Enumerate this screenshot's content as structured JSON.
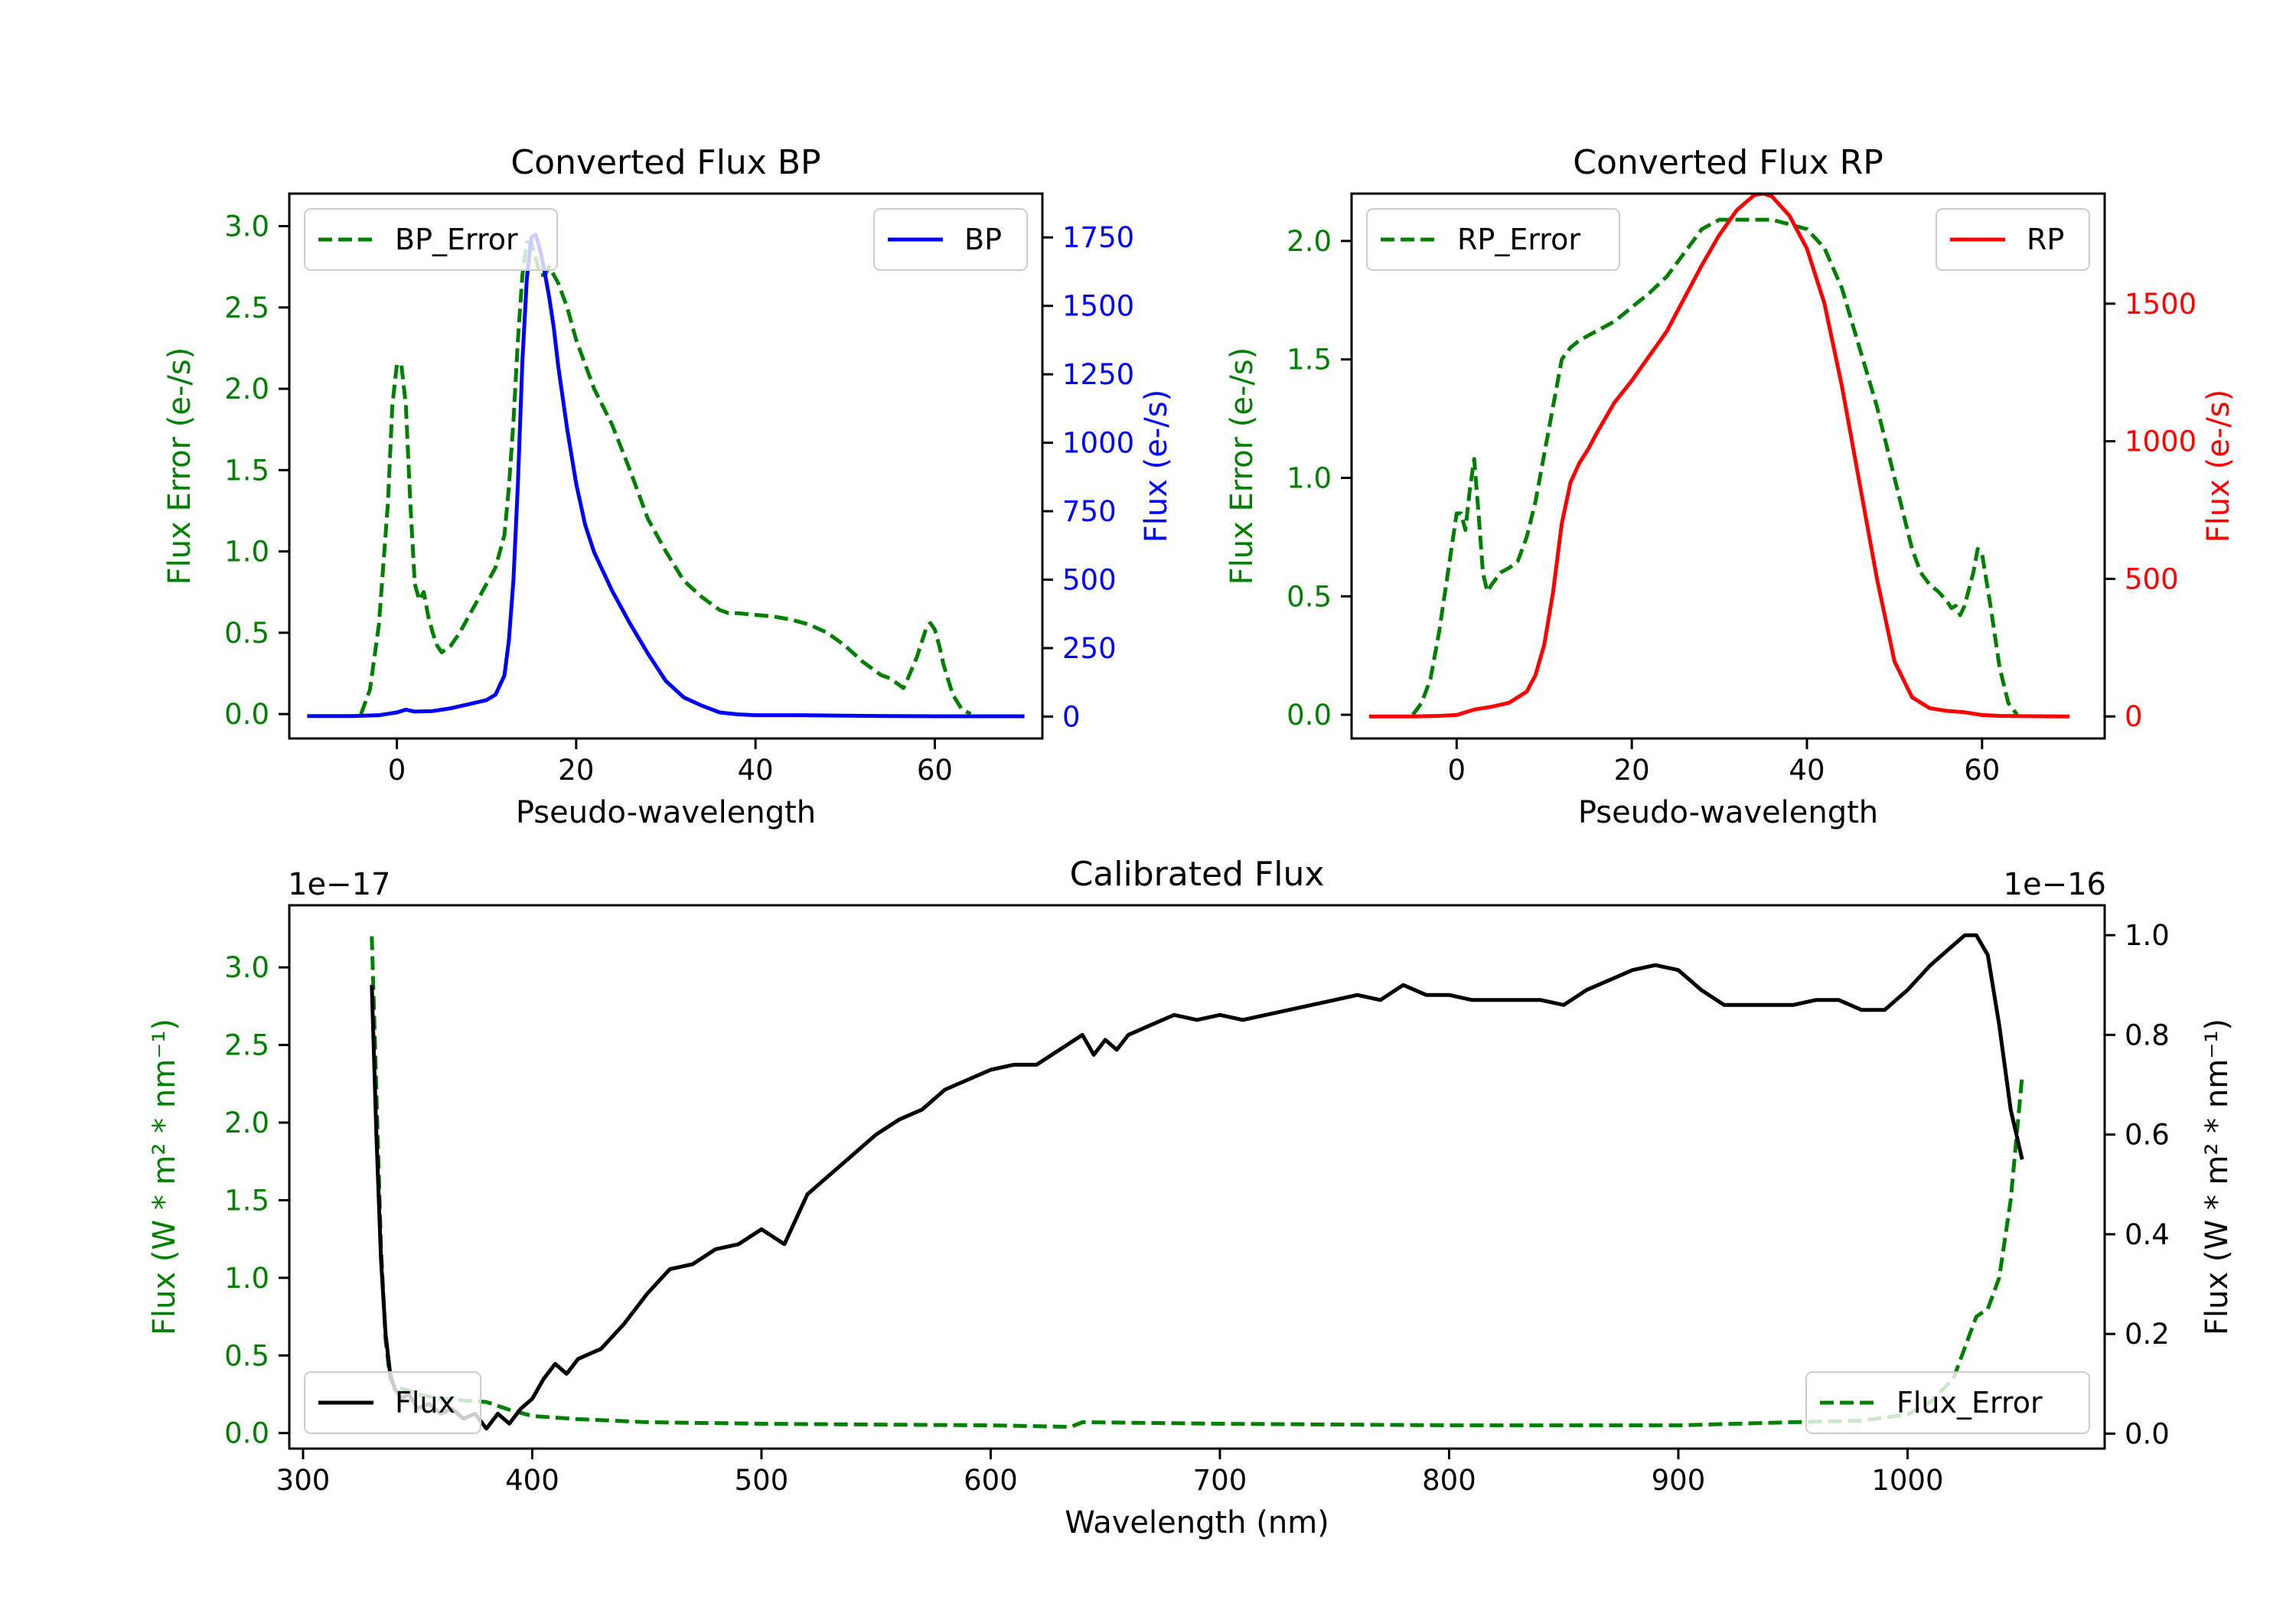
{
  "colors": {
    "bp": "#0000ff",
    "rp": "#ff0000",
    "error": "#008000",
    "flux": "#000000",
    "axis": "#000000",
    "background": "#ffffff"
  },
  "chart_data": [
    {
      "id": "bp",
      "type": "line",
      "title": "Converted Flux BP",
      "xlabel": "Pseudo-wavelength",
      "ylabel_left": "Flux Error (e-/s)",
      "ylabel_right": "Flux (e-/s)",
      "xlim": [
        -12,
        72
      ],
      "ylim_left": [
        -0.15,
        3.2
      ],
      "ylim_right": [
        -80,
        1910
      ],
      "xticks": [
        0,
        20,
        40,
        60
      ],
      "xtick_labels": [
        "0",
        "20",
        "40",
        "60"
      ],
      "yticks_left": [
        0.0,
        0.5,
        1.0,
        1.5,
        2.0,
        2.5,
        3.0
      ],
      "yticks_left_labels": [
        "0.0",
        "0.5",
        "1.0",
        "1.5",
        "2.0",
        "2.5",
        "3.0"
      ],
      "yticks_right": [
        0,
        250,
        500,
        750,
        1000,
        1250,
        1500,
        1750
      ],
      "yticks_right_labels": [
        "0",
        "250",
        "500",
        "750",
        "1000",
        "1250",
        "1500",
        "1750"
      ],
      "legend_left": "BP_Error",
      "legend_right": "BP",
      "series": [
        {
          "name": "BP_Error",
          "axis": "left",
          "style": "dashed",
          "color": "#008000",
          "x": [
            -4,
            -3,
            -2,
            -1,
            -0.5,
            0,
            0.5,
            1,
            1.5,
            2,
            2.5,
            3,
            3.5,
            4,
            4.5,
            5,
            6,
            7,
            8,
            9,
            10,
            11,
            12,
            12.5,
            13,
            13.5,
            14,
            14.5,
            15,
            15.5,
            16,
            16.5,
            17,
            18,
            19,
            20,
            22,
            24,
            26,
            28,
            30,
            32,
            34,
            36,
            37,
            38,
            40,
            42,
            44,
            46,
            48,
            50,
            52,
            54,
            55,
            56,
            56.5,
            57,
            58,
            59,
            59.5,
            60,
            60.5,
            61,
            62,
            63,
            64
          ],
          "values": [
            0.0,
            0.15,
            0.55,
            1.3,
            1.9,
            2.15,
            2.15,
            1.9,
            1.3,
            0.8,
            0.7,
            0.75,
            0.6,
            0.5,
            0.42,
            0.38,
            0.42,
            0.5,
            0.6,
            0.7,
            0.8,
            0.9,
            1.1,
            1.4,
            1.8,
            2.3,
            2.7,
            2.9,
            2.9,
            2.8,
            2.7,
            2.7,
            2.75,
            2.65,
            2.5,
            2.3,
            2.0,
            1.78,
            1.5,
            1.2,
            1.0,
            0.82,
            0.72,
            0.64,
            0.62,
            0.62,
            0.61,
            0.6,
            0.58,
            0.55,
            0.5,
            0.42,
            0.32,
            0.24,
            0.22,
            0.18,
            0.16,
            0.22,
            0.35,
            0.52,
            0.56,
            0.52,
            0.42,
            0.3,
            0.12,
            0.03,
            0.0
          ]
        },
        {
          "name": "BP",
          "axis": "right",
          "style": "solid",
          "color": "#0000ff",
          "x": [
            -10,
            -5,
            -2,
            0,
            1,
            2,
            4,
            6,
            8,
            10,
            11,
            12,
            12.5,
            13,
            13.5,
            14,
            14.5,
            15,
            15.5,
            16,
            16.5,
            17,
            17.5,
            18,
            19,
            20,
            21,
            22,
            24,
            26,
            28,
            30,
            32,
            34,
            36,
            38,
            40,
            45,
            50,
            55,
            60,
            65,
            70
          ],
          "values": [
            2,
            2,
            5,
            15,
            25,
            18,
            20,
            30,
            45,
            60,
            80,
            150,
            280,
            500,
            850,
            1300,
            1600,
            1750,
            1760,
            1700,
            1620,
            1530,
            1420,
            1280,
            1050,
            850,
            700,
            600,
            460,
            340,
            230,
            130,
            70,
            40,
            15,
            8,
            5,
            5,
            3,
            2,
            1,
            1,
            1
          ]
        }
      ]
    },
    {
      "id": "rp",
      "type": "line",
      "title": "Converted Flux RP",
      "xlabel": "Pseudo-wavelength",
      "ylabel_left": "Flux Error (e-/s)",
      "ylabel_right": "Flux (e-/s)",
      "xlim": [
        -12,
        74
      ],
      "ylim_left": [
        -0.1,
        2.2
      ],
      "ylim_right": [
        -80,
        1900
      ],
      "xticks": [
        0,
        20,
        40,
        60
      ],
      "xtick_labels": [
        "0",
        "20",
        "40",
        "60"
      ],
      "yticks_left": [
        0.0,
        0.5,
        1.0,
        1.5,
        2.0
      ],
      "yticks_left_labels": [
        "0.0",
        "0.5",
        "1.0",
        "1.5",
        "2.0"
      ],
      "yticks_right": [
        0,
        500,
        1000,
        1500
      ],
      "yticks_right_labels": [
        "0",
        "500",
        "1000",
        "1500"
      ],
      "legend_left": "RP_Error",
      "legend_right": "RP",
      "series": [
        {
          "name": "RP_Error",
          "axis": "left",
          "style": "dashed",
          "color": "#008000",
          "x": [
            -5,
            -4,
            -3,
            -2,
            -1,
            0,
            0.5,
            1,
            1.5,
            2,
            2.5,
            3,
            3.5,
            4,
            5,
            6,
            7,
            8,
            9,
            10,
            11,
            12,
            13,
            14,
            15,
            16,
            18,
            20,
            22,
            24,
            26,
            28,
            30,
            32,
            34,
            36,
            38,
            40,
            42,
            44,
            46,
            48,
            50,
            52,
            53,
            54,
            55,
            56,
            56.5,
            57,
            57.5,
            58,
            59,
            59.5,
            60,
            61,
            62,
            63,
            64
          ],
          "values": [
            0.0,
            0.05,
            0.15,
            0.35,
            0.6,
            0.85,
            0.85,
            0.78,
            0.95,
            1.08,
            0.85,
            0.6,
            0.52,
            0.55,
            0.6,
            0.62,
            0.65,
            0.75,
            0.9,
            1.1,
            1.3,
            1.5,
            1.55,
            1.58,
            1.6,
            1.62,
            1.66,
            1.72,
            1.78,
            1.85,
            1.95,
            2.05,
            2.09,
            2.09,
            2.09,
            2.09,
            2.07,
            2.05,
            1.97,
            1.8,
            1.55,
            1.3,
            1.0,
            0.7,
            0.6,
            0.55,
            0.52,
            0.48,
            0.45,
            0.46,
            0.42,
            0.46,
            0.6,
            0.7,
            0.68,
            0.45,
            0.2,
            0.05,
            0.0
          ]
        },
        {
          "name": "RP",
          "axis": "right",
          "style": "solid",
          "color": "#ff0000",
          "x": [
            -10,
            -5,
            -2,
            0,
            2,
            4,
            6,
            8,
            9,
            10,
            11,
            12,
            13,
            14,
            15,
            16,
            18,
            20,
            22,
            24,
            26,
            28,
            30,
            32,
            34,
            35,
            36,
            38,
            40,
            42,
            44,
            46,
            48,
            50,
            52,
            54,
            56,
            58,
            60,
            62,
            65,
            70
          ],
          "values": [
            0,
            0,
            2,
            5,
            25,
            35,
            50,
            90,
            150,
            260,
            450,
            700,
            850,
            920,
            970,
            1030,
            1140,
            1220,
            1310,
            1400,
            1520,
            1640,
            1750,
            1840,
            1895,
            1900,
            1890,
            1820,
            1700,
            1500,
            1200,
            850,
            500,
            200,
            70,
            30,
            20,
            15,
            5,
            2,
            1,
            0
          ]
        }
      ]
    },
    {
      "id": "calibrated",
      "type": "line",
      "title": "Calibrated Flux",
      "xlabel": "Wavelength (nm)",
      "ylabel_left": "Flux (W * m² * nm⁻¹)",
      "ylabel_right": "Flux (W * m² * nm⁻¹)",
      "offset_left": "1e−17",
      "offset_right": "1e−16",
      "xlim": [
        294,
        1086
      ],
      "ylim_left": [
        -0.1,
        3.4
      ],
      "ylim_right": [
        -0.03,
        1.06
      ],
      "xticks": [
        300,
        400,
        500,
        600,
        700,
        800,
        900,
        1000
      ],
      "xtick_labels": [
        "300",
        "400",
        "500",
        "600",
        "700",
        "800",
        "900",
        "1000"
      ],
      "yticks_left": [
        0.0,
        0.5,
        1.0,
        1.5,
        2.0,
        2.5,
        3.0
      ],
      "yticks_left_labels": [
        "0.0",
        "0.5",
        "1.0",
        "1.5",
        "2.0",
        "2.5",
        "3.0"
      ],
      "yticks_right": [
        0.0,
        0.2,
        0.4,
        0.6,
        0.8,
        1.0
      ],
      "yticks_right_labels": [
        "0.0",
        "0.2",
        "0.4",
        "0.6",
        "0.8",
        "1.0"
      ],
      "legend_left": "Flux",
      "legend_right": "Flux_Error",
      "series": [
        {
          "name": "Flux_Error",
          "axis": "left",
          "style": "dashed",
          "color": "#008000",
          "x": [
            330,
            332,
            334,
            336,
            338,
            340,
            345,
            350,
            360,
            370,
            380,
            390,
            400,
            420,
            450,
            500,
            550,
            600,
            635,
            640,
            700,
            800,
            900,
            950,
            980,
            1000,
            1010,
            1020,
            1025,
            1030,
            1035,
            1040,
            1045,
            1050
          ],
          "values": [
            3.2,
            2.2,
            1.2,
            0.6,
            0.35,
            0.3,
            0.28,
            0.25,
            0.22,
            0.21,
            0.2,
            0.15,
            0.11,
            0.09,
            0.07,
            0.06,
            0.055,
            0.05,
            0.04,
            0.07,
            0.06,
            0.05,
            0.05,
            0.07,
            0.08,
            0.12,
            0.2,
            0.35,
            0.55,
            0.75,
            0.8,
            1.0,
            1.5,
            2.3
          ]
        },
        {
          "name": "Flux",
          "axis": "right",
          "style": "solid",
          "color": "#000000",
          "x": [
            330,
            332,
            334,
            336,
            338,
            340,
            343,
            346,
            350,
            355,
            360,
            365,
            370,
            375,
            380,
            385,
            390,
            395,
            400,
            405,
            410,
            415,
            420,
            430,
            440,
            450,
            460,
            470,
            480,
            490,
            500,
            510,
            520,
            530,
            540,
            550,
            560,
            570,
            580,
            590,
            600,
            610,
            620,
            630,
            640,
            645,
            650,
            655,
            660,
            670,
            680,
            690,
            700,
            710,
            720,
            730,
            740,
            750,
            760,
            770,
            780,
            790,
            800,
            810,
            820,
            830,
            840,
            850,
            860,
            870,
            880,
            890,
            900,
            910,
            920,
            930,
            940,
            950,
            960,
            970,
            980,
            990,
            1000,
            1010,
            1020,
            1025,
            1030,
            1035,
            1040,
            1045,
            1050
          ],
          "values": [
            0.9,
            0.6,
            0.35,
            0.2,
            0.12,
            0.09,
            0.07,
            0.08,
            0.05,
            0.06,
            0.04,
            0.05,
            0.03,
            0.04,
            0.01,
            0.04,
            0.02,
            0.05,
            0.07,
            0.11,
            0.14,
            0.12,
            0.15,
            0.17,
            0.22,
            0.28,
            0.33,
            0.34,
            0.37,
            0.38,
            0.41,
            0.38,
            0.48,
            0.52,
            0.56,
            0.6,
            0.63,
            0.65,
            0.69,
            0.71,
            0.73,
            0.74,
            0.74,
            0.77,
            0.8,
            0.76,
            0.79,
            0.77,
            0.8,
            0.82,
            0.84,
            0.83,
            0.84,
            0.83,
            0.84,
            0.85,
            0.86,
            0.87,
            0.88,
            0.87,
            0.9,
            0.88,
            0.88,
            0.87,
            0.87,
            0.87,
            0.87,
            0.86,
            0.89,
            0.91,
            0.93,
            0.94,
            0.93,
            0.89,
            0.86,
            0.86,
            0.86,
            0.86,
            0.87,
            0.87,
            0.85,
            0.85,
            0.89,
            0.94,
            0.98,
            1.0,
            1.0,
            0.96,
            0.82,
            0.65,
            0.55
          ]
        }
      ]
    }
  ]
}
